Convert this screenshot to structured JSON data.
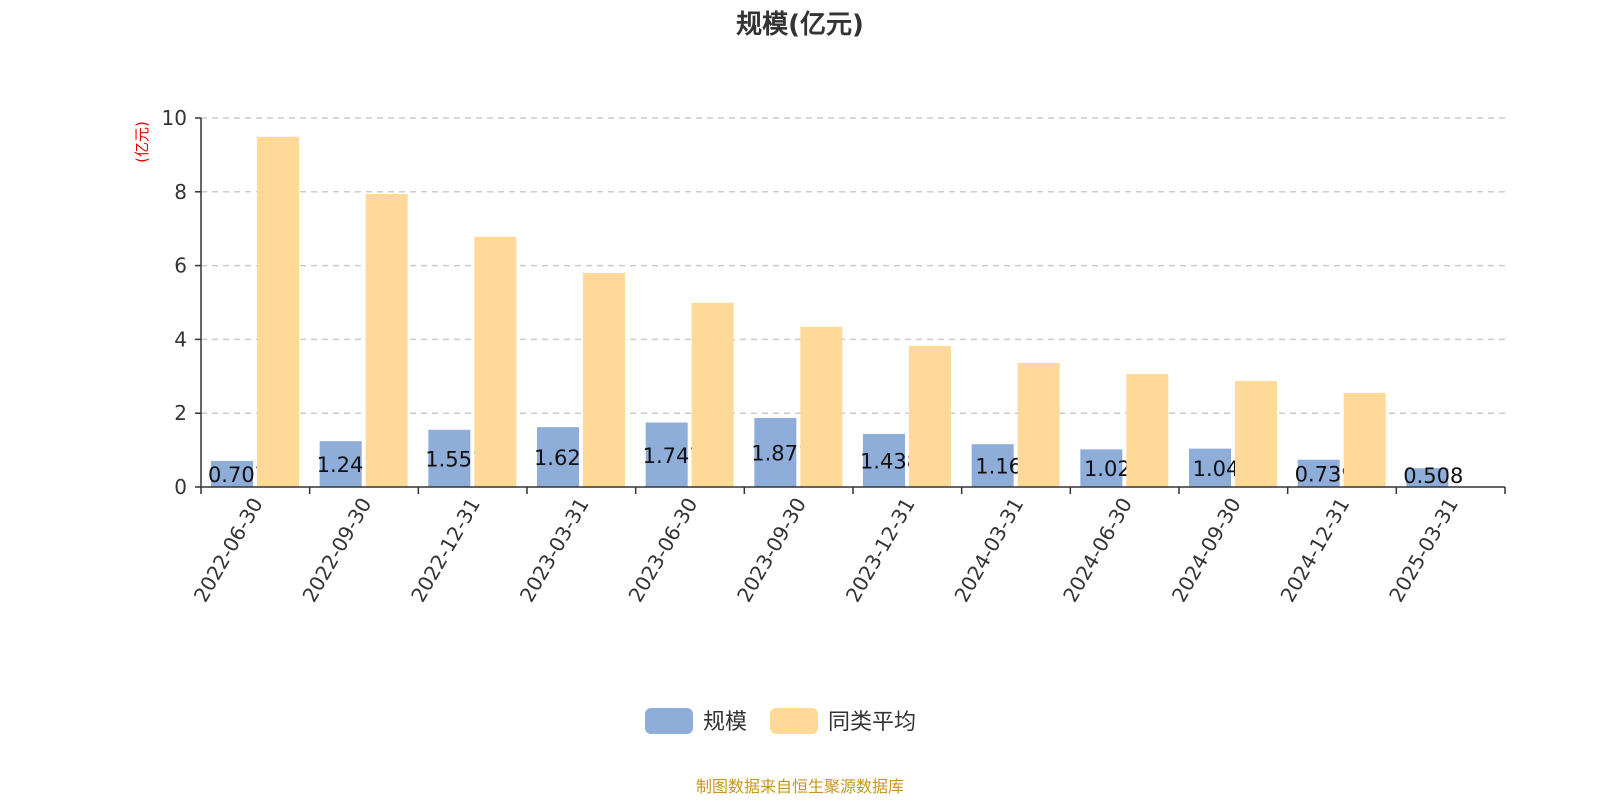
{
  "chart_data": {
    "type": "bar",
    "title": "规模(亿元)",
    "ylabel": "(亿元)",
    "xlabel": "",
    "ylim": [
      0,
      10
    ],
    "yticks": [
      0,
      2,
      4,
      6,
      8,
      10
    ],
    "grid": true,
    "legend_position": "bottom",
    "categories": [
      "2022-06-30",
      "2022-09-30",
      "2022-12-31",
      "2023-03-31",
      "2023-06-30",
      "2023-09-30",
      "2023-12-31",
      "2024-03-31",
      "2024-06-30",
      "2024-09-30",
      "2024-12-31",
      "2025-03-31"
    ],
    "series": [
      {
        "name": "规模",
        "color": "#8eadd9",
        "values": [
          0.707,
          1.241,
          1.551,
          1.621,
          1.747,
          1.871,
          1.438,
          1.16,
          1.02,
          1.04,
          0.739,
          0.508
        ],
        "labels": [
          "0.707",
          "1.241",
          "1.551",
          "1.621",
          "1.747",
          "1.871",
          "1.438",
          "1.16",
          "1.02",
          "1.04",
          "0.739",
          "0.508"
        ]
      },
      {
        "name": "同类平均",
        "color": "#fed998",
        "values": [
          9.49,
          7.94,
          6.78,
          5.8,
          4.99,
          4.34,
          3.82,
          3.36,
          3.06,
          2.87,
          2.55,
          null
        ]
      }
    ]
  },
  "footer": "制图数据来自恒生聚源数据库"
}
